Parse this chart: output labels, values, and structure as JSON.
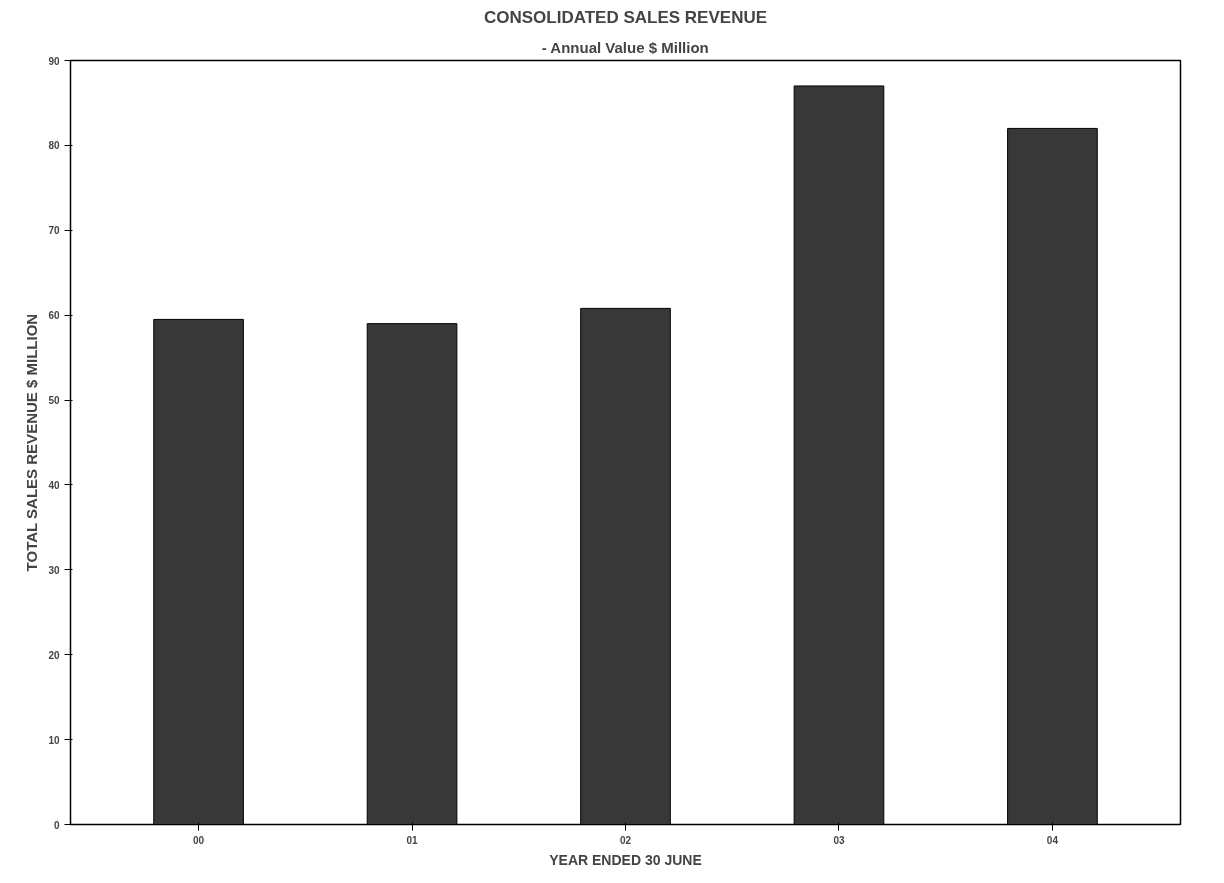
{
  "chart_data": {
    "type": "bar",
    "title": "CONSOLIDATED SALES REVENUE",
    "subtitle": "- Annual Value $ Million",
    "xlabel": "YEAR ENDED 30 JUNE",
    "ylabel": "TOTAL SALES REVENUE $ MILLION",
    "categories": [
      "00",
      "01",
      "02",
      "03",
      "04"
    ],
    "values": [
      59.5,
      59,
      60.8,
      87,
      82
    ],
    "color": "#383838",
    "ylim": [
      0,
      90
    ],
    "yticks": [
      0,
      10,
      20,
      30,
      40,
      50,
      60,
      70,
      80,
      90
    ],
    "grid": false
  }
}
